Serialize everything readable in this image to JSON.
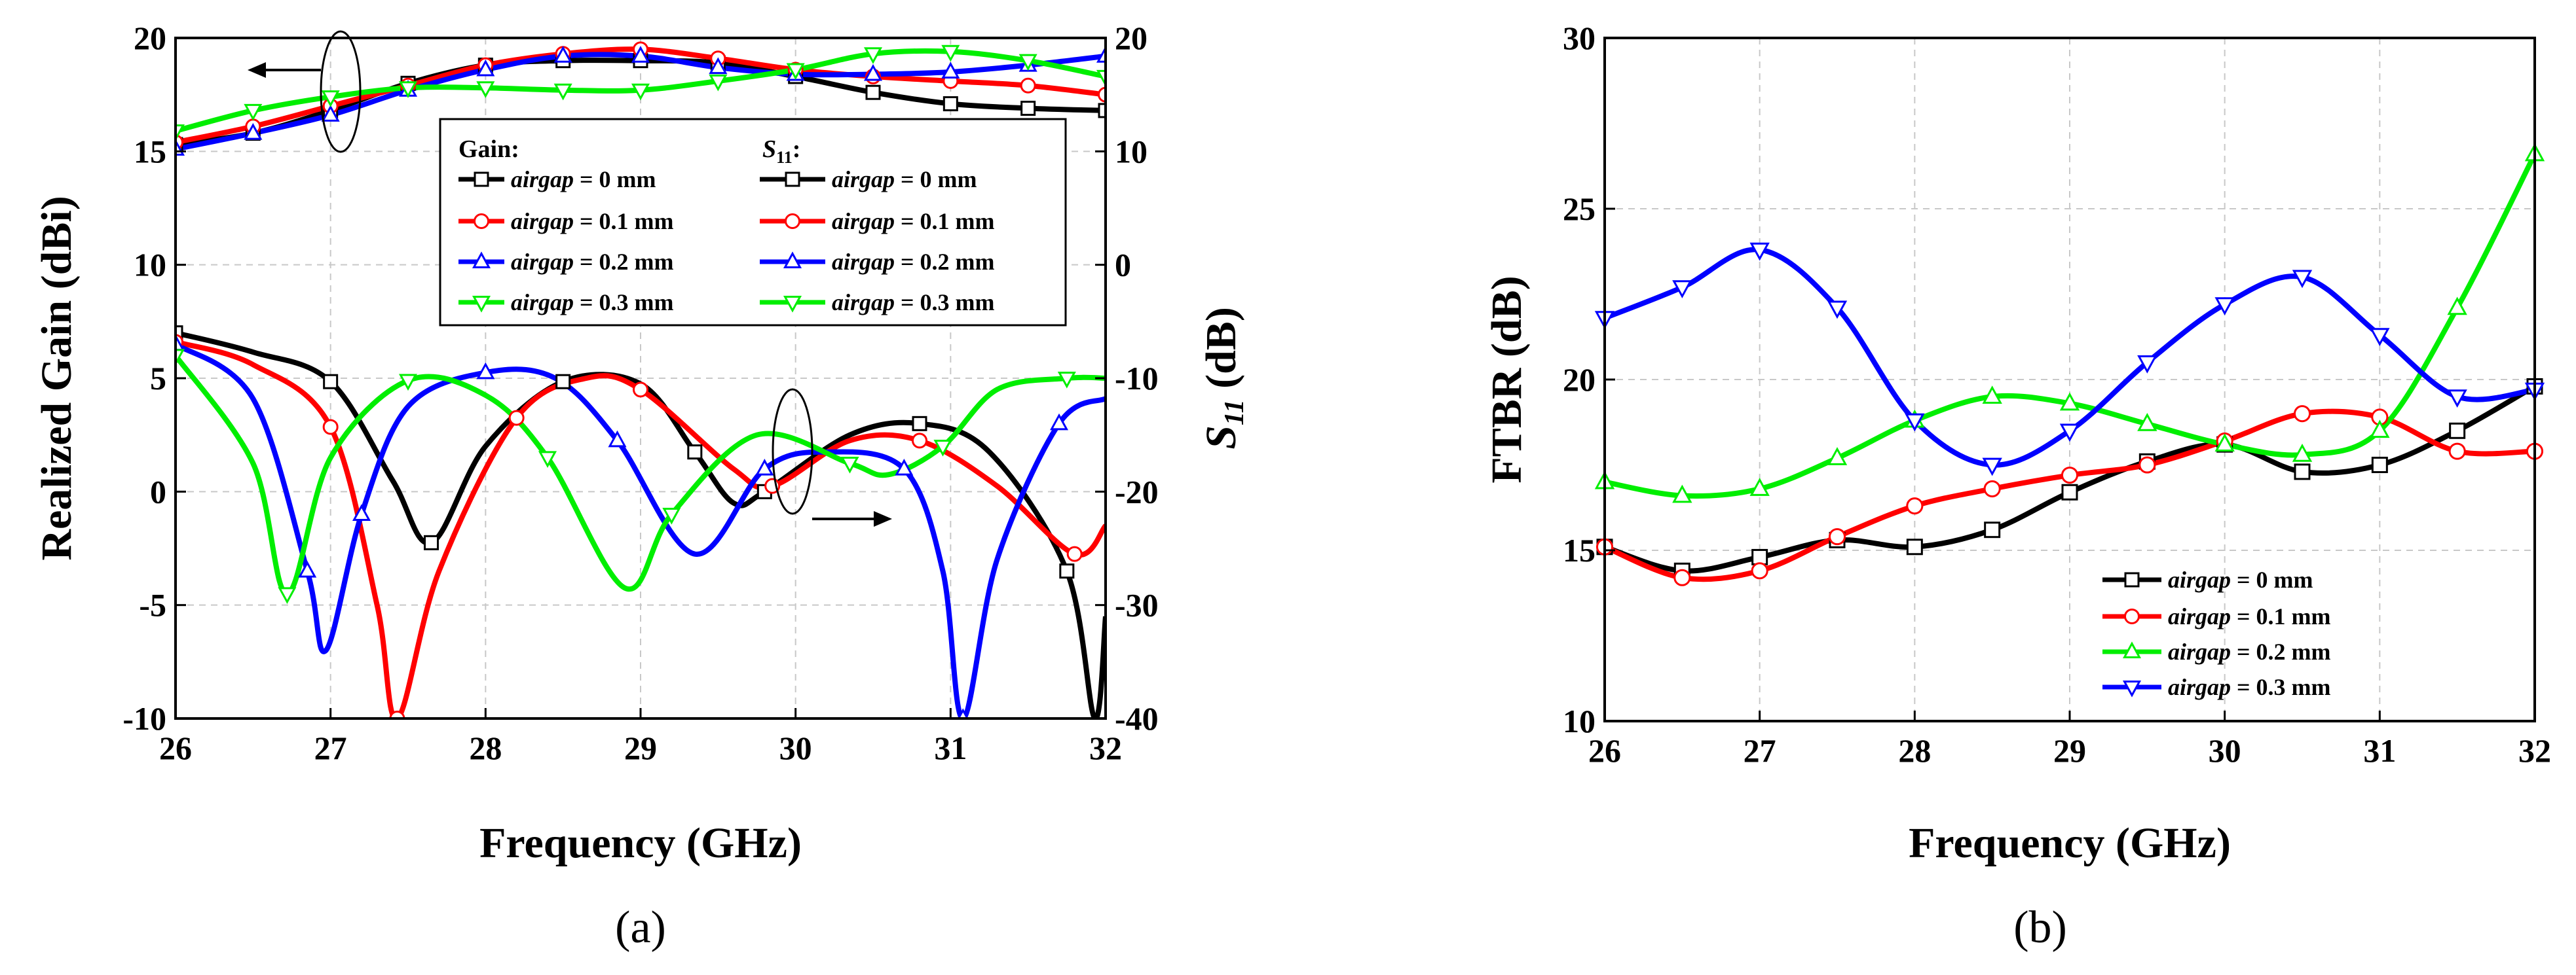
{
  "chart_data": [
    {
      "type": "line",
      "panel_label": "(a)",
      "title": "",
      "xlabel": "Frequency (GHz)",
      "ylabel_left": "Realized Gain (dBi)",
      "ylabel_right_base": "S",
      "ylabel_right_sub": "11",
      "ylabel_right_unit": " (dB)",
      "xlim": [
        26,
        32
      ],
      "ylim_left": [
        -10,
        20
      ],
      "ylim_right": [
        -40,
        20
      ],
      "xticks": [
        26,
        27,
        28,
        29,
        30,
        31,
        32
      ],
      "yticks_left": [
        -10,
        -5,
        0,
        5,
        10,
        15,
        20
      ],
      "yticks_right": [
        -40,
        -30,
        -20,
        -10,
        0,
        10,
        20
      ],
      "grid": true,
      "legend_location": "upper-right",
      "legend_headers": {
        "gain": "Gain:",
        "s11_base": "S",
        "s11_sub": "11",
        "s11_suffix": ":"
      },
      "gain_series": [
        {
          "name": "airgap = 0 mm",
          "color": "#000000",
          "marker": "square",
          "x": [
            26,
            26.5,
            27,
            27.5,
            28,
            28.5,
            29,
            29.5,
            30,
            30.5,
            31,
            31.5,
            32
          ],
          "values": [
            15.3,
            15.8,
            16.8,
            18.0,
            18.8,
            19.0,
            19.0,
            18.9,
            18.3,
            17.6,
            17.1,
            16.9,
            16.8
          ]
        },
        {
          "name": "airgap = 0.1 mm",
          "color": "#ff0000",
          "marker": "circle",
          "x": [
            26,
            26.5,
            27,
            27.5,
            28,
            28.5,
            29,
            29.5,
            30,
            30.5,
            31,
            31.5,
            32
          ],
          "values": [
            15.4,
            16.1,
            17.0,
            17.9,
            18.8,
            19.3,
            19.5,
            19.1,
            18.6,
            18.3,
            18.1,
            17.9,
            17.5
          ]
        },
        {
          "name": "airgap = 0.2 mm",
          "color": "#0000ff",
          "marker": "triangle-up",
          "x": [
            26,
            26.5,
            27,
            27.5,
            28,
            28.5,
            29,
            29.5,
            30,
            30.5,
            31,
            31.5,
            32
          ],
          "values": [
            15.1,
            15.8,
            16.6,
            17.7,
            18.6,
            19.2,
            19.2,
            18.7,
            18.4,
            18.4,
            18.5,
            18.8,
            19.2
          ]
        },
        {
          "name": "airgap = 0.3 mm",
          "color": "#00ee00",
          "marker": "triangle-down",
          "x": [
            26,
            26.5,
            27,
            27.5,
            28,
            28.5,
            29,
            29.5,
            30,
            30.5,
            31,
            31.5,
            32
          ],
          "values": [
            15.9,
            16.8,
            17.4,
            17.8,
            17.8,
            17.7,
            17.7,
            18.1,
            18.6,
            19.3,
            19.4,
            19.0,
            18.3
          ]
        }
      ],
      "s11_series": [
        {
          "name": "airgap = 0 mm",
          "color": "#000000",
          "marker": "square",
          "x": [
            26,
            26.5,
            27,
            27.4,
            27.65,
            28,
            28.5,
            29,
            29.35,
            29.6,
            29.8,
            30.35,
            30.8,
            31.25,
            31.75,
            31.93,
            32
          ],
          "values": [
            -6.0,
            -7.7,
            -10.3,
            -19.0,
            -24.5,
            -16.0,
            -10.3,
            -10.5,
            -16.5,
            -21.0,
            -20.0,
            -15.0,
            -14.0,
            -16.5,
            -27.0,
            -40.0,
            -31.0
          ]
        },
        {
          "name": "airgap = 0.1 mm",
          "color": "#ff0000",
          "marker": "circle",
          "x": [
            26,
            26.5,
            27,
            27.3,
            27.43,
            27.7,
            28.2,
            28.65,
            29,
            29.6,
            29.85,
            30.35,
            30.8,
            31.3,
            31.8,
            32
          ],
          "values": [
            -6.8,
            -8.8,
            -14.3,
            -30.0,
            -40.0,
            -27.0,
            -13.5,
            -10.0,
            -11.0,
            -18.0,
            -19.5,
            -15.5,
            -15.5,
            -19.5,
            -25.5,
            -23.0
          ]
        },
        {
          "name": "airgap = 0.2 mm",
          "color": "#0000ff",
          "marker": "triangle-up",
          "x": [
            26,
            26.5,
            26.85,
            26.97,
            27.2,
            27.5,
            28,
            28.45,
            28.85,
            29.35,
            29.8,
            30.2,
            30.7,
            30.95,
            31.08,
            31.3,
            31.7,
            32
          ],
          "values": [
            -7.0,
            -11.8,
            -27.0,
            -34.0,
            -22.0,
            -12.5,
            -9.5,
            -10.0,
            -15.5,
            -25.5,
            -18.0,
            -16.5,
            -18.0,
            -27.0,
            -40.0,
            -26.0,
            -14.0,
            -11.8
          ]
        },
        {
          "name": "airgap = 0.3 mm",
          "color": "#00ee00",
          "marker": "triangle-down",
          "x": [
            26,
            26.5,
            26.72,
            27,
            27.5,
            28,
            28.4,
            28.9,
            29.2,
            29.75,
            30.35,
            30.6,
            30.95,
            31.3,
            31.75,
            32
          ],
          "values": [
            -8.0,
            -17.5,
            -29.0,
            -17.0,
            -10.2,
            -11.5,
            -17.0,
            -28.5,
            -22.0,
            -15.0,
            -17.5,
            -18.5,
            -16.0,
            -11.0,
            -10.0,
            -10.0
          ]
        }
      ],
      "annotations": [
        {
          "text": "left arrow: gain curves read on left axis",
          "target": "left"
        },
        {
          "text": "right arrow: S11 curves read on right axis",
          "target": "right"
        }
      ]
    },
    {
      "type": "line",
      "panel_label": "(b)",
      "title": "",
      "xlabel": "Frequency (GHz)",
      "ylabel": "FTBR (dB)",
      "xlim": [
        26,
        32
      ],
      "ylim": [
        10,
        30
      ],
      "xticks": [
        26,
        27,
        28,
        29,
        30,
        31,
        32
      ],
      "yticks": [
        10,
        15,
        20,
        25,
        30
      ],
      "grid": true,
      "legend_location": "lower-right",
      "series": [
        {
          "name": "airgap = 0 mm",
          "color": "#000000",
          "marker": "square",
          "x": [
            26,
            26.5,
            27,
            27.5,
            28,
            28.5,
            29,
            29.5,
            30,
            30.5,
            31,
            31.5,
            32
          ],
          "values": [
            15.1,
            14.4,
            14.8,
            15.3,
            15.1,
            15.6,
            16.7,
            17.6,
            18.1,
            17.3,
            17.5,
            18.5,
            19.8
          ]
        },
        {
          "name": "airgap = 0.1 mm",
          "color": "#ff0000",
          "marker": "circle",
          "x": [
            26,
            26.5,
            27,
            27.5,
            28,
            28.5,
            29,
            29.5,
            30,
            30.5,
            31,
            31.5,
            32
          ],
          "values": [
            15.1,
            14.2,
            14.4,
            15.4,
            16.3,
            16.8,
            17.2,
            17.5,
            18.2,
            19.0,
            18.9,
            17.9,
            17.9
          ]
        },
        {
          "name": "airgap = 0.2 mm",
          "color": "#00ee00",
          "marker": "triangle-up",
          "x": [
            26,
            26.5,
            27,
            27.5,
            28,
            28.5,
            29,
            29.5,
            30,
            30.5,
            31,
            31.5,
            32
          ],
          "values": [
            17.0,
            16.6,
            16.8,
            17.7,
            18.8,
            19.5,
            19.3,
            18.7,
            18.1,
            17.8,
            18.5,
            22.1,
            26.6
          ]
        },
        {
          "name": "airgap = 0.3 mm",
          "color": "#0000ff",
          "marker": "triangle-down",
          "x": [
            26,
            26.5,
            27,
            27.5,
            28,
            28.5,
            29,
            29.5,
            30,
            30.5,
            31,
            31.5,
            32
          ],
          "values": [
            21.8,
            22.7,
            23.8,
            22.1,
            18.8,
            17.5,
            18.5,
            20.5,
            22.2,
            23.0,
            21.3,
            19.5,
            19.7
          ]
        }
      ]
    }
  ]
}
